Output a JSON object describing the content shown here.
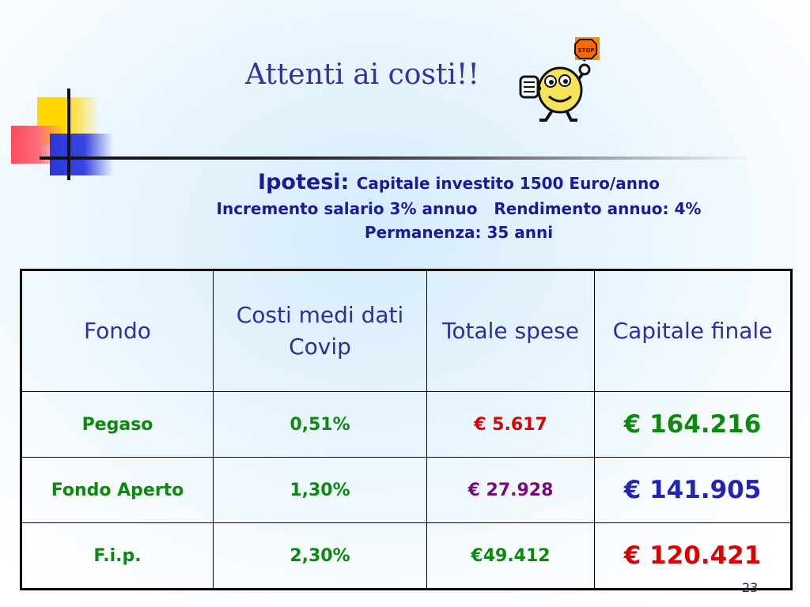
{
  "slide": {
    "title": "Attenti ai costi!!",
    "mascot": {
      "sign_text": "STOP",
      "icon": "stop-sign-mascot-icon"
    },
    "hypothesis": {
      "label": "Ipotesi:",
      "line1": "Capitale investito 1500 Euro/anno",
      "line2": "Incremento salario 3% annuo   Rendimento annuo: 4%",
      "line3": "Permanenza: 35 anni"
    },
    "table": {
      "headers": [
        "Fondo",
        "Costi medi dati Covip",
        "Totale spese",
        "Capitale finale"
      ],
      "rows": [
        {
          "fondo": "Pegaso",
          "costi": "0,51%",
          "spese": "€ 5.617",
          "capitale": "€ 164.216"
        },
        {
          "fondo": "Fondo Aperto",
          "costi": "1,30%",
          "spese": "€ 27.928",
          "capitale": "€ 141.905"
        },
        {
          "fondo": "F.i.p.",
          "costi": "2,30%",
          "spese": "€49.412",
          "capitale": "€ 120.421"
        }
      ]
    },
    "page_number": "23"
  },
  "colors": {
    "title": "#33339a",
    "header_text": "#2e2e9e",
    "green": "#0c8a0c",
    "red": "#e00000",
    "purple": "#7a0a7a",
    "blue": "#2323b6"
  }
}
